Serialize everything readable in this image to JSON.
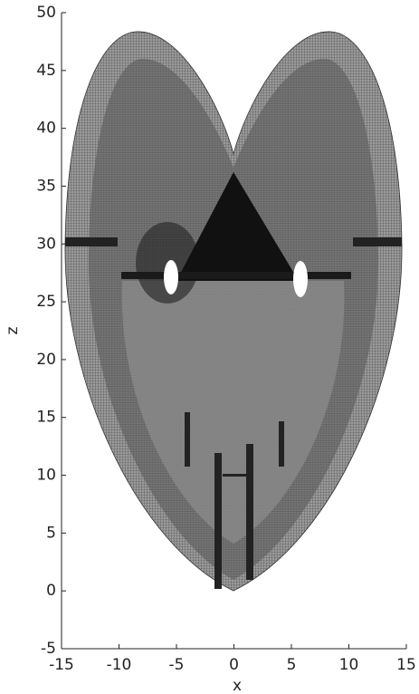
{
  "chart_data": {
    "type": "surface",
    "xlabel": "x",
    "ylabel": "z",
    "xlim": [
      -15,
      15
    ],
    "xticks": [
      -15,
      -10,
      -5,
      0,
      5,
      10,
      15
    ],
    "ylim": [
      -5,
      50
    ],
    "yticks": [
      -5,
      0,
      5,
      10,
      15,
      20,
      25,
      30,
      35,
      40,
      45,
      50
    ]
  }
}
